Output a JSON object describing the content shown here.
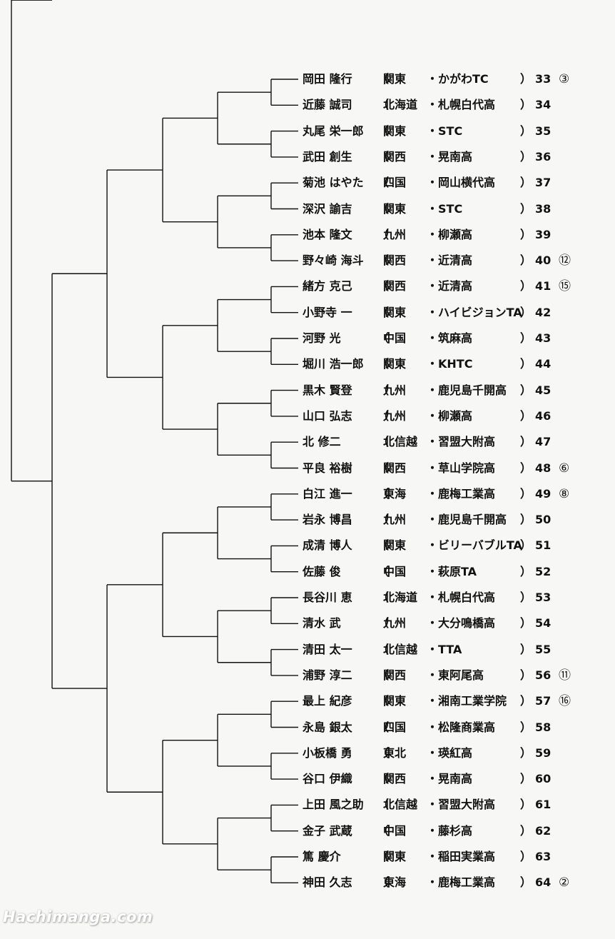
{
  "entries": [
    {
      "name": "岡田 隆行",
      "region": "関東",
      "club": "・かがわTC",
      "number": "33",
      "seed": "③"
    },
    {
      "name": "近藤 誠司",
      "region": "北海道",
      "club": "・札幌白代高",
      "number": "34",
      "seed": ""
    },
    {
      "name": "丸尾 栄一郎",
      "region": "関東",
      "club": "・STC",
      "number": "35",
      "seed": ""
    },
    {
      "name": "武田 創生",
      "region": "関西",
      "club": "・晃南高",
      "number": "36",
      "seed": ""
    },
    {
      "name": "菊池 はやた",
      "region": "四国",
      "club": "・岡山横代高",
      "number": "37",
      "seed": ""
    },
    {
      "name": "深沢 諭吉",
      "region": "関東",
      "club": "・STC",
      "number": "38",
      "seed": ""
    },
    {
      "name": "池本 隆文",
      "region": "九州",
      "club": "・柳瀬高",
      "number": "39",
      "seed": ""
    },
    {
      "name": "野々崎 海斗",
      "region": "関西",
      "club": "・近清高",
      "number": "40",
      "seed": "⑫"
    },
    {
      "name": "緒方 克己",
      "region": "関西",
      "club": "・近清高",
      "number": "41",
      "seed": "⑮"
    },
    {
      "name": "小野寺 一",
      "region": "関東",
      "club": "・ハイビジョンTA",
      "number": "42",
      "seed": ""
    },
    {
      "name": "河野 光",
      "region": "中国",
      "club": "・筑麻高",
      "number": "43",
      "seed": ""
    },
    {
      "name": "堀川 浩一郎",
      "region": "関東",
      "club": "・KHTC",
      "number": "44",
      "seed": ""
    },
    {
      "name": "黒木 賢登",
      "region": "九州",
      "club": "・鹿児島千開高",
      "number": "45",
      "seed": ""
    },
    {
      "name": "山口 弘志",
      "region": "九州",
      "club": "・柳瀬高",
      "number": "46",
      "seed": ""
    },
    {
      "name": "北 修二",
      "region": "北信越",
      "club": "・習盟大附高",
      "number": "47",
      "seed": ""
    },
    {
      "name": "平良 裕樹",
      "region": "関西",
      "club": "・草山学院高",
      "number": "48",
      "seed": "⑥"
    },
    {
      "name": "白江 進一",
      "region": "東海",
      "club": "・鹿梅工業高",
      "number": "49",
      "seed": "⑧"
    },
    {
      "name": "岩永 博昌",
      "region": "九州",
      "club": "・鹿児島千開高",
      "number": "50",
      "seed": ""
    },
    {
      "name": "成清 博人",
      "region": "関東",
      "club": "・ビリーバブルTA",
      "number": "51",
      "seed": ""
    },
    {
      "name": "佐藤 俊",
      "region": "中国",
      "club": "・萩原TA",
      "number": "52",
      "seed": ""
    },
    {
      "name": "長谷川 恵",
      "region": "北海道",
      "club": "・札幌白代高",
      "number": "53",
      "seed": ""
    },
    {
      "name": "清水 武",
      "region": "九州",
      "club": "・大分鳴橋高",
      "number": "54",
      "seed": ""
    },
    {
      "name": "清田 太一",
      "region": "北信越",
      "club": "・TTA",
      "number": "55",
      "seed": ""
    },
    {
      "name": "浦野 淳二",
      "region": "関西",
      "club": "・東阿尾高",
      "number": "56",
      "seed": "⑪"
    },
    {
      "name": "最上 紀彦",
      "region": "関東",
      "club": "・湘南工業学院",
      "number": "57",
      "seed": "⑯"
    },
    {
      "name": "永島 銀太",
      "region": "四国",
      "club": "・松隆商業高",
      "number": "58",
      "seed": ""
    },
    {
      "name": "小板橋 勇",
      "region": "東北",
      "club": "・瑛紅高",
      "number": "59",
      "seed": ""
    },
    {
      "name": "谷口 伊織",
      "region": "関西",
      "club": "・晃南高",
      "number": "60",
      "seed": ""
    },
    {
      "name": "上田 風之助",
      "region": "北信越",
      "club": "・習盟大附高",
      "number": "61",
      "seed": ""
    },
    {
      "name": "金子 武蔵",
      "region": "中国",
      "club": "・藤杉高",
      "number": "62",
      "seed": ""
    },
    {
      "name": "篤 慶介",
      "region": "関東",
      "club": "・稲田実業高",
      "number": "63",
      "seed": ""
    },
    {
      "name": "神田 久志",
      "region": "東海",
      "club": "・鹿梅工業高",
      "number": "64",
      "seed": "②"
    }
  ],
  "brackets": {
    "open": "（",
    "close": "）"
  },
  "watermark": "Hachimanga.com",
  "colors": {
    "line": "#111111",
    "text": "#111111",
    "background": "#f7f7f5"
  }
}
